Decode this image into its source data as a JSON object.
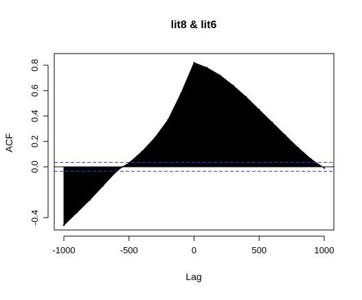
{
  "chart_data": {
    "type": "area",
    "title": "lit8 & lit6",
    "xlabel": "Lag",
    "ylabel": "ACF",
    "xlim": [
      -1000,
      1000
    ],
    "ylim": [
      -0.5,
      0.85
    ],
    "x_ticks": [
      "-1000",
      "-500",
      "0",
      "500",
      "1000"
    ],
    "x_tick_values": [
      -1000,
      -500,
      0,
      500,
      1000
    ],
    "y_ticks": [
      "-0.4",
      "0.0",
      "0.2",
      "0.4",
      "0.6",
      "0.8"
    ],
    "y_tick_values": [
      -0.4,
      0.0,
      0.2,
      0.4,
      0.6,
      0.8
    ],
    "confidence_bounds": [
      0.035,
      -0.035
    ],
    "confidence_color": "#3333ff",
    "fill_color": "#000000",
    "x": [
      -1000,
      -900,
      -800,
      -700,
      -600,
      -550,
      -500,
      -400,
      -300,
      -200,
      -100,
      0,
      100,
      200,
      300,
      400,
      500,
      600,
      700,
      800,
      900,
      1000
    ],
    "values": [
      -0.46,
      -0.36,
      -0.26,
      -0.15,
      -0.04,
      0.0,
      0.03,
      0.12,
      0.23,
      0.37,
      0.58,
      0.82,
      0.78,
      0.72,
      0.64,
      0.55,
      0.45,
      0.35,
      0.25,
      0.15,
      0.06,
      -0.01
    ],
    "grid": false,
    "legend": "none"
  }
}
